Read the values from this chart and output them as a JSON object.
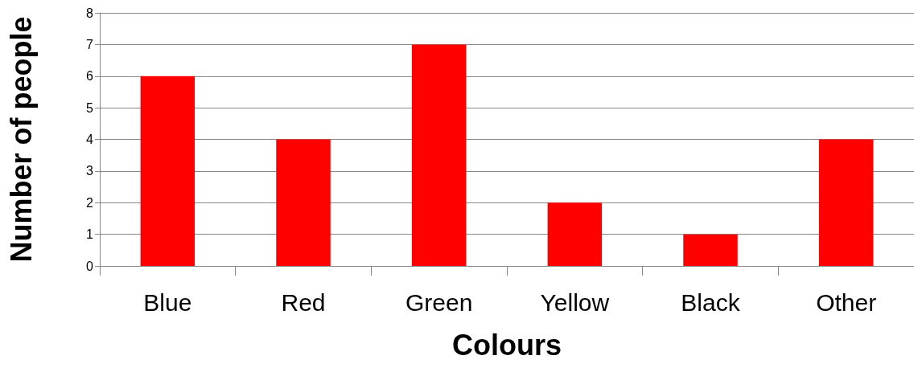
{
  "chart_data": {
    "type": "bar",
    "xlabel": "Colours",
    "ylabel": "Number of people",
    "categories": [
      "Blue",
      "Red",
      "Green",
      "Yellow",
      "Black",
      "Other"
    ],
    "values": [
      6,
      4,
      7,
      2,
      1,
      4
    ],
    "color": "#ff0000",
    "ylim": [
      0,
      8
    ],
    "yticks": [
      0,
      1,
      2,
      3,
      4,
      5,
      6,
      7,
      8
    ],
    "grid": "y"
  }
}
